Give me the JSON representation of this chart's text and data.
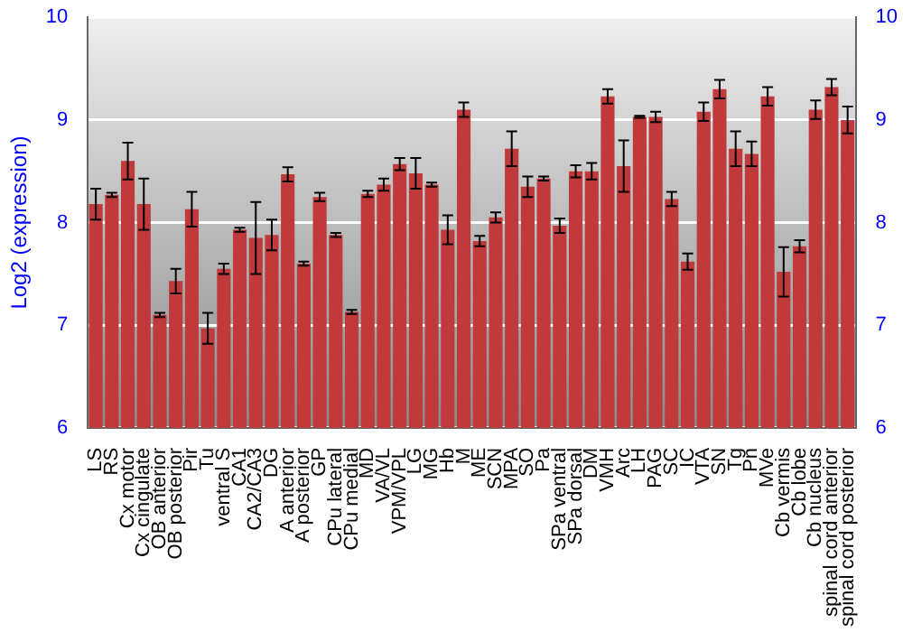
{
  "chart_data": {
    "type": "bar",
    "ylabel": "Log2 (expression)",
    "categories": [
      "LS",
      "RS",
      "Cx motor",
      "Cx cingulate",
      "OB anterior",
      "OB posterior",
      "Pir",
      "Tu",
      "ventral S",
      "CA1",
      "CA2/CA3",
      "DG",
      "A anterior",
      "A posterior",
      "GP",
      "CPu lateral",
      "CPu medial",
      "MD",
      "VA/VL",
      "VPM/VPL",
      "LG",
      "MG",
      "Hb",
      "M",
      "ME",
      "SCN",
      "MPA",
      "SO",
      "Pa",
      "SPa ventral",
      "SPa dorsal",
      "DM",
      "VMH",
      "Arc",
      "LH",
      "PAG",
      "SC",
      "IC",
      "VTA",
      "SN",
      "Tg",
      "Pn",
      "MVe",
      "Cb vermis",
      "Cb lobe",
      "Cb nucleus",
      "spinal cord anterior",
      "spinal cord posterior"
    ],
    "values": [
      8.18,
      8.27,
      8.6,
      8.18,
      7.1,
      7.43,
      8.13,
      6.97,
      7.55,
      7.93,
      7.85,
      7.88,
      8.47,
      7.6,
      8.25,
      7.88,
      7.13,
      8.28,
      8.37,
      8.57,
      8.48,
      8.37,
      7.93,
      9.1,
      7.82,
      8.05,
      8.72,
      8.35,
      8.43,
      7.97,
      8.5,
      8.5,
      9.23,
      8.55,
      9.03,
      9.03,
      8.23,
      7.62,
      9.08,
      9.3,
      8.72,
      8.67,
      9.23,
      7.52,
      7.77,
      9.1,
      9.32,
      9.0
    ],
    "errors": [
      0.15,
      0.02,
      0.18,
      0.25,
      0.02,
      0.12,
      0.17,
      0.15,
      0.05,
      0.02,
      0.35,
      0.15,
      0.07,
      0.02,
      0.04,
      0.02,
      0.02,
      0.03,
      0.06,
      0.06,
      0.15,
      0.02,
      0.14,
      0.07,
      0.05,
      0.05,
      0.17,
      0.1,
      0.02,
      0.07,
      0.06,
      0.08,
      0.07,
      0.25,
      0.01,
      0.05,
      0.07,
      0.08,
      0.09,
      0.09,
      0.17,
      0.12,
      0.09,
      0.24,
      0.06,
      0.09,
      0.08,
      0.13
    ],
    "color": "#c0393b",
    "ylim": [
      6,
      10
    ],
    "yticks": [
      6,
      7,
      8,
      9,
      10
    ],
    "y2lim": [
      6,
      10
    ],
    "y2ticks": [
      6,
      7,
      8,
      9,
      10
    ],
    "grid": "y"
  }
}
